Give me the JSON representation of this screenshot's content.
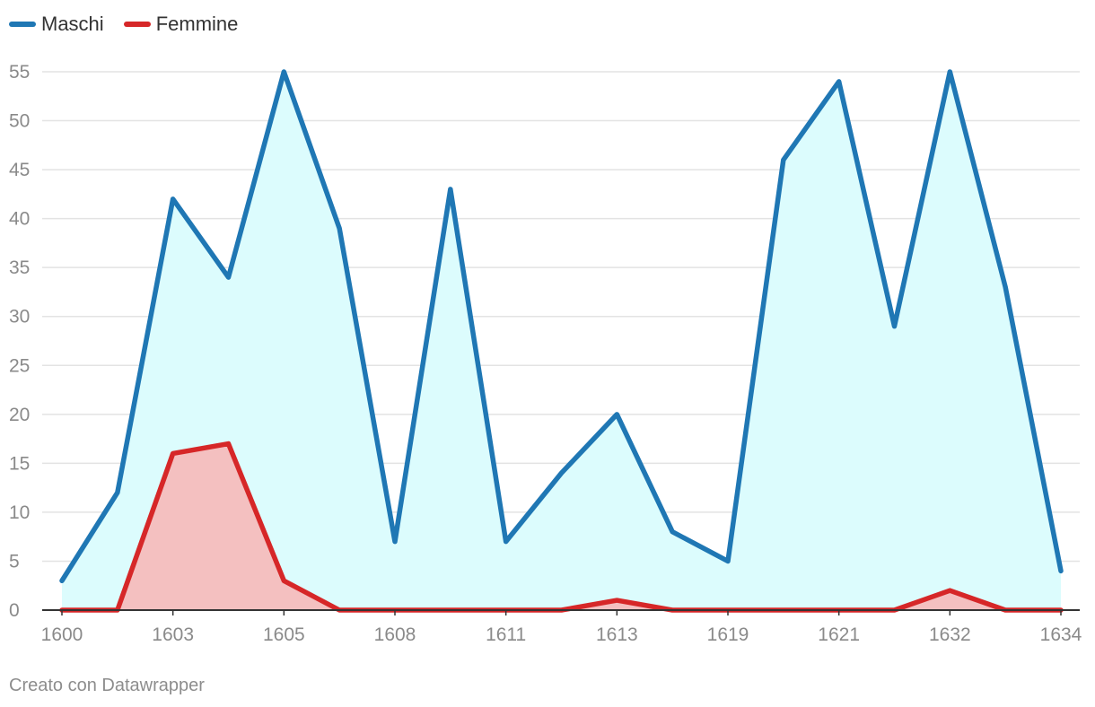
{
  "legend": {
    "maschi": "Maschi",
    "femmine": "Femmine"
  },
  "colors": {
    "maschi_line": "#1f77b4",
    "maschi_fill": "#dcfcfd",
    "femmine_line": "#d62728",
    "femmine_fill": "#f4bdbd",
    "grid": "#e3e3e3",
    "axis": "#333333"
  },
  "footer": "Creato con Datawrapper",
  "chart_data": {
    "type": "area",
    "title": "",
    "xlabel": "",
    "ylabel": "",
    "ylim": [
      0,
      55
    ],
    "y_ticks": [
      0,
      5,
      10,
      15,
      20,
      25,
      30,
      35,
      40,
      45,
      50,
      55
    ],
    "x_tick_labels": [
      "1600",
      "1603",
      "1605",
      "1608",
      "1611",
      "1613",
      "1619",
      "1621",
      "1632",
      "1634"
    ],
    "x_tick_positions": [
      0,
      2,
      4,
      6,
      8,
      10,
      12,
      14,
      16,
      18
    ],
    "grid": true,
    "legend_position": "top-left",
    "series": [
      {
        "name": "Maschi",
        "values": [
          3,
          12,
          42,
          34,
          55,
          39,
          7,
          43,
          7,
          14,
          20,
          8,
          5,
          46,
          54,
          29,
          55,
          33,
          4
        ]
      },
      {
        "name": "Femmine",
        "values": [
          0,
          0,
          16,
          17,
          3,
          0,
          0,
          0,
          0,
          0,
          1,
          0,
          0,
          0,
          0,
          0,
          2,
          0,
          0
        ]
      }
    ]
  }
}
